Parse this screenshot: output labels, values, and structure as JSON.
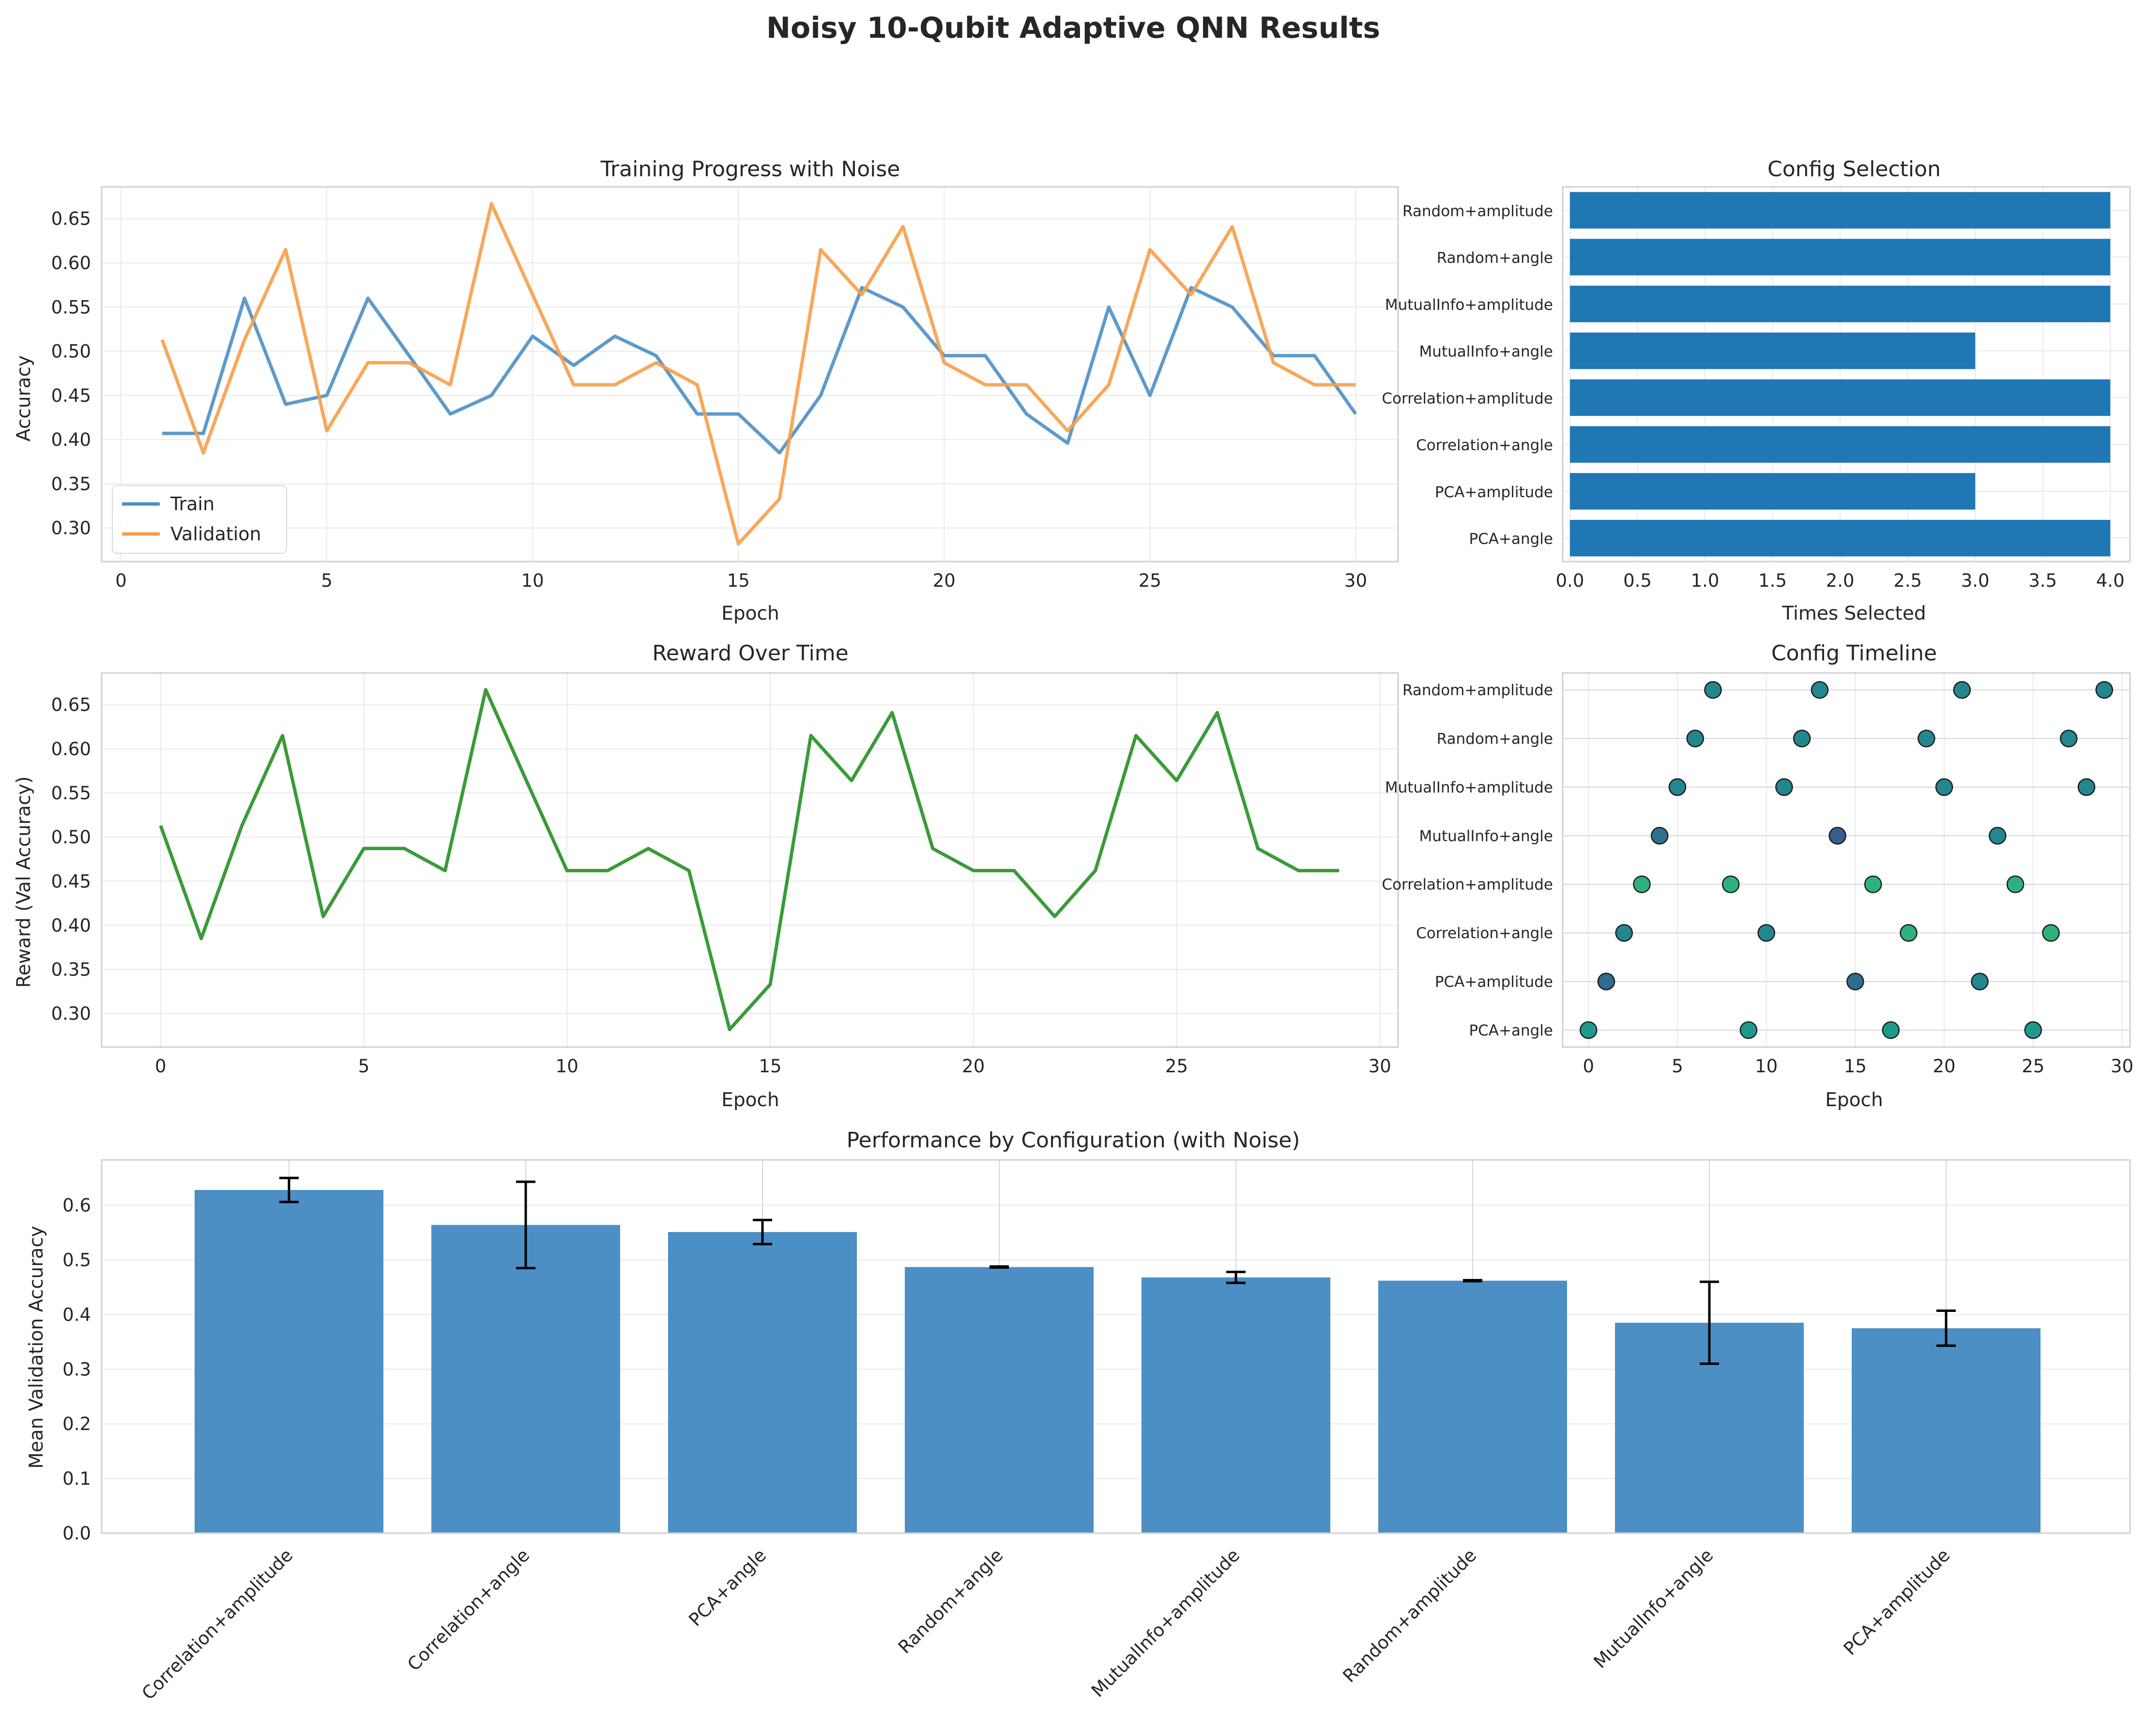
{
  "figure": {
    "title": "Noisy 10-Qubit Adaptive QNN Results"
  },
  "chart_data": [
    {
      "id": "training",
      "type": "line",
      "title": "Training Progress with Noise",
      "xlabel": "Epoch",
      "ylabel": "Accuracy",
      "xlim": [
        0,
        31.5
      ],
      "ylim": [
        0.262,
        0.686
      ],
      "xticks": [
        0,
        5,
        10,
        15,
        20,
        25,
        30
      ],
      "yticks": [
        0.3,
        0.35,
        0.4,
        0.45,
        0.5,
        0.55,
        0.6,
        0.65
      ],
      "grid": true,
      "legend_position": "lower-left",
      "x": [
        1,
        2,
        3,
        4,
        5,
        6,
        7,
        8,
        9,
        10,
        11,
        12,
        13,
        14,
        15,
        16,
        17,
        18,
        19,
        20,
        21,
        22,
        23,
        24,
        25,
        26,
        27,
        28,
        29,
        30
      ],
      "series": [
        {
          "name": "Train",
          "color": "#4C8FC4",
          "values": [
            0.407,
            0.407,
            0.56,
            0.44,
            0.45,
            0.56,
            0.495,
            0.429,
            0.45,
            0.517,
            0.484,
            0.517,
            0.495,
            0.429,
            0.429,
            0.385,
            0.45,
            0.572,
            0.55,
            0.495,
            0.495,
            0.429,
            0.396,
            0.55,
            0.45,
            0.572,
            0.55,
            0.495,
            0.495,
            0.429
          ]
        },
        {
          "name": "Validation",
          "color": "#F89D48",
          "values": [
            0.513,
            0.385,
            0.513,
            0.615,
            0.41,
            0.487,
            0.487,
            0.462,
            0.667,
            0.564,
            0.462,
            0.462,
            0.487,
            0.462,
            0.282,
            0.333,
            0.615,
            0.564,
            0.641,
            0.487,
            0.462,
            0.462,
            0.41,
            0.462,
            0.615,
            0.564,
            0.641,
            0.487,
            0.462,
            0.462
          ]
        }
      ]
    },
    {
      "id": "selection",
      "type": "bar",
      "orientation": "horizontal",
      "title": "Config Selection",
      "xlabel": "Times Selected",
      "ylabel": "",
      "xlim": [
        0,
        4.2
      ],
      "xticks": [
        0.0,
        0.5,
        1.0,
        1.5,
        2.0,
        2.5,
        3.0,
        3.5,
        4.0
      ],
      "grid": true,
      "color": "#1F77B4",
      "categories": [
        "PCA+angle",
        "PCA+amplitude",
        "Correlation+angle",
        "Correlation+amplitude",
        "MutualInfo+angle",
        "MutualInfo+amplitude",
        "Random+angle",
        "Random+amplitude"
      ],
      "values": [
        4,
        3,
        4,
        4,
        3,
        4,
        4,
        4
      ]
    },
    {
      "id": "reward",
      "type": "line",
      "title": "Reward Over Time",
      "xlabel": "Epoch",
      "ylabel": "Reward (Val Accuracy)",
      "xlim": [
        -1.45,
        30.45
      ],
      "ylim": [
        0.262,
        0.686
      ],
      "xticks": [
        0,
        5,
        10,
        15,
        20,
        25,
        30
      ],
      "yticks": [
        0.3,
        0.35,
        0.4,
        0.45,
        0.5,
        0.55,
        0.6,
        0.65
      ],
      "grid": true,
      "x": [
        0,
        1,
        2,
        3,
        4,
        5,
        6,
        7,
        8,
        9,
        10,
        11,
        12,
        13,
        14,
        15,
        16,
        17,
        18,
        19,
        20,
        21,
        22,
        23,
        24,
        25,
        26,
        27,
        28,
        29
      ],
      "series": [
        {
          "name": "",
          "color": "#3A9B38",
          "values": [
            0.513,
            0.385,
            0.513,
            0.615,
            0.41,
            0.487,
            0.487,
            0.462,
            0.667,
            0.564,
            0.462,
            0.462,
            0.487,
            0.462,
            0.282,
            0.333,
            0.615,
            0.564,
            0.641,
            0.487,
            0.462,
            0.462,
            0.41,
            0.462,
            0.615,
            0.564,
            0.641,
            0.487,
            0.462,
            0.462
          ]
        }
      ]
    },
    {
      "id": "timeline",
      "type": "scatter",
      "title": "Config Timeline",
      "xlabel": "Epoch",
      "ylabel": "",
      "xlim": [
        -1.45,
        30.45
      ],
      "ylim": [
        -0.35,
        7.35
      ],
      "xticks": [
        0,
        5,
        10,
        15,
        20,
        25,
        30
      ],
      "grid": true,
      "categories": [
        "PCA+angle",
        "PCA+amplitude",
        "Correlation+angle",
        "Correlation+amplitude",
        "MutualInfo+angle",
        "MutualInfo+amplitude",
        "Random+angle",
        "Random+amplitude"
      ],
      "points": [
        {
          "x": 0,
          "y": 0,
          "color": "#1F9A8A"
        },
        {
          "x": 1,
          "y": 1,
          "color": "#2F6C8E"
        },
        {
          "x": 2,
          "y": 2,
          "color": "#24868E"
        },
        {
          "x": 3,
          "y": 3,
          "color": "#2DB27D"
        },
        {
          "x": 4,
          "y": 4,
          "color": "#2C728E"
        },
        {
          "x": 5,
          "y": 5,
          "color": "#24868E"
        },
        {
          "x": 6,
          "y": 6,
          "color": "#24868E"
        },
        {
          "x": 7,
          "y": 7,
          "color": "#24868E"
        },
        {
          "x": 8,
          "y": 3,
          "color": "#2DB27D"
        },
        {
          "x": 9,
          "y": 0,
          "color": "#1F9A8A"
        },
        {
          "x": 10,
          "y": 2,
          "color": "#24868E"
        },
        {
          "x": 11,
          "y": 5,
          "color": "#24868E"
        },
        {
          "x": 12,
          "y": 6,
          "color": "#24868E"
        },
        {
          "x": 13,
          "y": 7,
          "color": "#24868E"
        },
        {
          "x": 14,
          "y": 4,
          "color": "#355E8D"
        },
        {
          "x": 15,
          "y": 1,
          "color": "#2F6C8E"
        },
        {
          "x": 16,
          "y": 3,
          "color": "#2DB27D"
        },
        {
          "x": 17,
          "y": 0,
          "color": "#1F9A8A"
        },
        {
          "x": 18,
          "y": 2,
          "color": "#2DB27D"
        },
        {
          "x": 19,
          "y": 6,
          "color": "#24868E"
        },
        {
          "x": 20,
          "y": 5,
          "color": "#24868E"
        },
        {
          "x": 21,
          "y": 7,
          "color": "#24868E"
        },
        {
          "x": 22,
          "y": 1,
          "color": "#24868E"
        },
        {
          "x": 23,
          "y": 4,
          "color": "#24868E"
        },
        {
          "x": 24,
          "y": 3,
          "color": "#2DB27D"
        },
        {
          "x": 25,
          "y": 0,
          "color": "#1F9A8A"
        },
        {
          "x": 26,
          "y": 2,
          "color": "#2DB27D"
        },
        {
          "x": 27,
          "y": 6,
          "color": "#24868E"
        },
        {
          "x": 28,
          "y": 5,
          "color": "#24868E"
        },
        {
          "x": 29,
          "y": 7,
          "color": "#24868E"
        }
      ]
    },
    {
      "id": "performance",
      "type": "bar",
      "title": "Performance by Configuration (with Noise)",
      "xlabel": "",
      "ylabel": "Mean Validation Accuracy",
      "ylim": [
        0,
        0.683
      ],
      "yticks": [
        0.0,
        0.1,
        0.2,
        0.3,
        0.4,
        0.5,
        0.6
      ],
      "grid": true,
      "color": "#4C8FC4",
      "categories": [
        "Correlation+amplitude",
        "Correlation+angle",
        "PCA+angle",
        "Random+angle",
        "MutualInfo+amplitude",
        "Random+amplitude",
        "MutualInfo+angle",
        "PCA+amplitude"
      ],
      "values": [
        0.628,
        0.564,
        0.551,
        0.487,
        0.468,
        0.462,
        0.385,
        0.375
      ],
      "errors": [
        0.022,
        0.079,
        0.022,
        0.001,
        0.01,
        0.001,
        0.075,
        0.032
      ]
    }
  ]
}
